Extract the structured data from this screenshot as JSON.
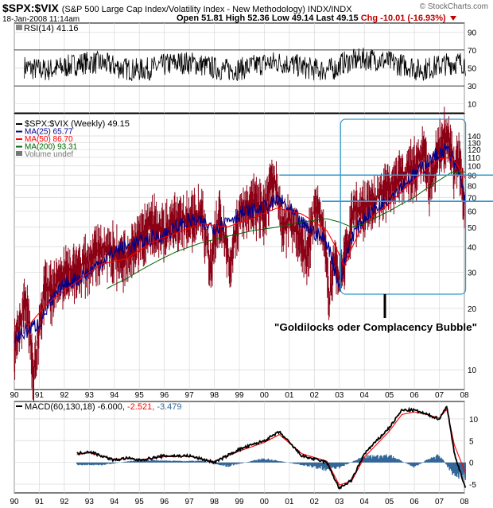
{
  "header": {
    "symbol": "$SPX:$VIX",
    "subtitle": "(S&P 500 Large Cap Index/Volatility Index - New Methodology)  INDX/INDX",
    "brand": "© StockCharts.com",
    "date": "18-Jan-2008 11:14am",
    "quote_text": "Open 51.81  High 52.36  Low 49.14  Last 49.15",
    "chg_text": "Chg -10.01 (-16.93%)"
  },
  "colors": {
    "price": "#8b0015",
    "ma25": "#00008b",
    "ma50": "#ff0000",
    "ma200": "#006400",
    "annotation": "#3399cc",
    "macd_hist": "#336699"
  },
  "chart_data": [
    {
      "type": "line",
      "panel": "RSI",
      "title": "RSI(14) 41.16",
      "ylim": [
        0,
        100
      ],
      "yticks": [
        10,
        30,
        50,
        70,
        90
      ],
      "reference_lines": [
        30,
        70
      ],
      "last": 41.16
    },
    {
      "type": "line",
      "panel": "price",
      "scale": "log",
      "ylim": [
        8,
        180
      ],
      "yticks": [
        10,
        20,
        30,
        40,
        50,
        60,
        70,
        80,
        90,
        100,
        110,
        120,
        130,
        140
      ],
      "legend": [
        "$SPX:$VIX (Weekly) 49.15",
        "MA(25) 65.77",
        "MA(50) 86.70",
        "MA(200) 93.31",
        "Volume undef"
      ],
      "annotation": "\"Goldilocks oder Complacency Bubble\"",
      "horizontal_lines": [
        90,
        67
      ],
      "series": [
        {
          "name": "$SPX:$VIX (Weekly)",
          "x": [
            1990.0,
            1990.25,
            1990.5,
            1990.75,
            1991.0,
            1991.25,
            1991.5,
            1991.75,
            1992.0,
            1992.5,
            1993.0,
            1993.5,
            1994.0,
            1994.5,
            1995.0,
            1995.5,
            1996.0,
            1996.5,
            1997.0,
            1997.5,
            1997.85,
            1998.2,
            1998.65,
            1999.0,
            1999.5,
            2000.0,
            2000.4,
            2000.7,
            2001.0,
            2001.4,
            2001.7,
            2002.0,
            2002.3,
            2002.6,
            2002.8,
            2003.0,
            2003.3,
            2003.6,
            2004.0,
            2004.5,
            2005.0,
            2005.5,
            2006.0,
            2006.4,
            2006.6,
            2006.9,
            2007.2,
            2007.45,
            2007.6,
            2007.8,
            2008.0,
            2008.05
          ],
          "values": [
            13,
            18,
            22,
            9,
            16,
            26,
            24,
            28,
            30,
            32,
            34,
            40,
            38,
            35,
            45,
            52,
            48,
            55,
            55,
            60,
            30,
            58,
            30,
            60,
            65,
            62,
            90,
            50,
            55,
            45,
            35,
            62,
            55,
            22,
            35,
            28,
            40,
            60,
            62,
            70,
            80,
            90,
            100,
            120,
            80,
            110,
            140,
            130,
            90,
            110,
            60,
            49.15
          ]
        },
        {
          "name": "MA(25)",
          "x": [
            1990.0,
            1991.0,
            1992.0,
            1993.0,
            1994.0,
            1995.0,
            1996.0,
            1997.0,
            1998.0,
            1999.0,
            2000.0,
            2000.6,
            2001.5,
            2002.5,
            2003.0,
            2003.5,
            2004.0,
            2005.0,
            2006.0,
            2006.8,
            2007.3,
            2007.8,
            2008.05
          ],
          "values": [
            14,
            17,
            26,
            30,
            38,
            42,
            46,
            54,
            50,
            58,
            62,
            68,
            52,
            42,
            25,
            45,
            55,
            70,
            90,
            110,
            120,
            90,
            65.77
          ]
        },
        {
          "name": "MA(50)",
          "x": [
            1990.5,
            1991.5,
            1992.5,
            1993.5,
            1994.5,
            1995.5,
            1996.5,
            1997.5,
            1998.5,
            1999.5,
            2000.5,
            2001.5,
            2002.5,
            2003.2,
            2004.0,
            2005.0,
            2006.0,
            2007.0,
            2007.5,
            2008.05
          ],
          "values": [
            16,
            22,
            27,
            33,
            35,
            42,
            47,
            52,
            50,
            55,
            62,
            58,
            48,
            32,
            52,
            65,
            85,
            108,
            110,
            86.7
          ]
        },
        {
          "name": "MA(200)",
          "x": [
            1993.7,
            1994.5,
            1995.5,
            1996.5,
            1997.5,
            1998.5,
            1999.5,
            2000.5,
            2001.5,
            2002.5,
            2003.0,
            2003.5,
            2004.0,
            2005.0,
            2006.0,
            2007.0,
            2007.5,
            2008.05
          ],
          "values": [
            25,
            28,
            33,
            38,
            42,
            45,
            48,
            50,
            53,
            55,
            53,
            50,
            52,
            60,
            70,
            85,
            93,
            93.31
          ]
        }
      ]
    },
    {
      "type": "area",
      "panel": "MACD",
      "title": "MACD(60,130,18)",
      "legend": [
        "-6.000",
        "-2.521",
        "-3.479"
      ],
      "ylim": [
        -7,
        14
      ],
      "yticks": [
        -5,
        0,
        5,
        10
      ],
      "series": [
        {
          "name": "MACD",
          "x": [
            1992.5,
            1993.0,
            1994.0,
            1994.5,
            1995.0,
            1996.0,
            1997.0,
            1998.0,
            1999.0,
            2000.0,
            2000.6,
            2001.5,
            2002.5,
            2003.0,
            2003.5,
            2004.0,
            2005.0,
            2005.5,
            2006.0,
            2006.5,
            2007.0,
            2007.3,
            2007.6,
            2008.05
          ],
          "values": [
            2,
            2.5,
            0.5,
            1.0,
            0.5,
            1.5,
            1.5,
            0,
            3,
            5,
            7,
            1.5,
            0,
            -6,
            -4,
            2,
            8,
            12,
            12,
            11,
            10,
            13,
            2,
            -6
          ]
        },
        {
          "name": "Signal",
          "x": [
            1992.5,
            1993.0,
            1994.0,
            1994.5,
            1995.0,
            1996.0,
            1997.0,
            1998.0,
            1999.0,
            2000.0,
            2000.6,
            2001.5,
            2002.5,
            2003.0,
            2003.5,
            2004.0,
            2005.0,
            2005.5,
            2006.0,
            2006.5,
            2007.0,
            2007.3,
            2007.6,
            2008.05
          ],
          "values": [
            1.8,
            2.2,
            0.7,
            0.9,
            0.6,
            1.3,
            1.4,
            0.2,
            2.6,
            4.6,
            6.4,
            2.0,
            0.3,
            -5.2,
            -4.2,
            1.2,
            7.2,
            11.0,
            11.6,
            11.0,
            10.2,
            12.2,
            4.0,
            -2.521
          ]
        },
        {
          "name": "Histogram",
          "x": [
            1992.5,
            1993.5,
            1995.0,
            1996.5,
            1997.5,
            1998.5,
            2000.0,
            2001.5,
            2002.5,
            2003.0,
            2004.0,
            2005.0,
            2006.0,
            2006.5,
            2007.0,
            2007.5,
            2008.05
          ],
          "values": [
            -0.5,
            -0.5,
            0.5,
            0.3,
            0.3,
            -0.8,
            0.8,
            -0.5,
            -1.5,
            -1.0,
            1.2,
            1.5,
            -1.0,
            0.5,
            1.5,
            -2.0,
            -3.479
          ]
        }
      ]
    }
  ],
  "x_axis": {
    "ticks": [
      "90",
      "91",
      "92",
      "93",
      "94",
      "95",
      "96",
      "97",
      "98",
      "99",
      "00",
      "01",
      "02",
      "03",
      "04",
      "05",
      "06",
      "07",
      "08"
    ]
  }
}
